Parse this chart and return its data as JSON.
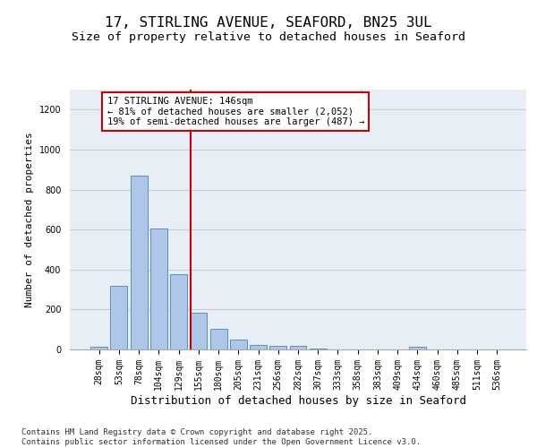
{
  "title_line1": "17, STIRLING AVENUE, SEAFORD, BN25 3UL",
  "title_line2": "Size of property relative to detached houses in Seaford",
  "xlabel": "Distribution of detached houses by size in Seaford",
  "ylabel": "Number of detached properties",
  "categories": [
    "28sqm",
    "53sqm",
    "78sqm",
    "104sqm",
    "129sqm",
    "155sqm",
    "180sqm",
    "205sqm",
    "231sqm",
    "256sqm",
    "282sqm",
    "307sqm",
    "333sqm",
    "358sqm",
    "383sqm",
    "409sqm",
    "434sqm",
    "460sqm",
    "485sqm",
    "511sqm",
    "536sqm"
  ],
  "values": [
    15,
    320,
    870,
    605,
    375,
    185,
    105,
    50,
    22,
    18,
    20,
    5,
    0,
    0,
    0,
    0,
    15,
    0,
    0,
    0,
    0
  ],
  "bar_color": "#aec6e8",
  "bar_edge_color": "#5a8fc2",
  "annotation_box_text": "17 STIRLING AVENUE: 146sqm\n← 81% of detached houses are smaller (2,052)\n19% of semi-detached houses are larger (487) →",
  "vline_color": "#cc0000",
  "box_edge_color": "#cc0000",
  "ylim": [
    0,
    1300
  ],
  "yticks": [
    0,
    200,
    400,
    600,
    800,
    1000,
    1200
  ],
  "grid_color": "#cccccc",
  "bg_color": "#e8eef5",
  "footnote": "Contains HM Land Registry data © Crown copyright and database right 2025.\nContains public sector information licensed under the Open Government Licence v3.0.",
  "title_fontsize": 11.5,
  "subtitle_fontsize": 9.5,
  "xlabel_fontsize": 9,
  "ylabel_fontsize": 8,
  "tick_fontsize": 7,
  "annotation_fontsize": 7.5,
  "footnote_fontsize": 6.5,
  "vline_x": 4.62
}
